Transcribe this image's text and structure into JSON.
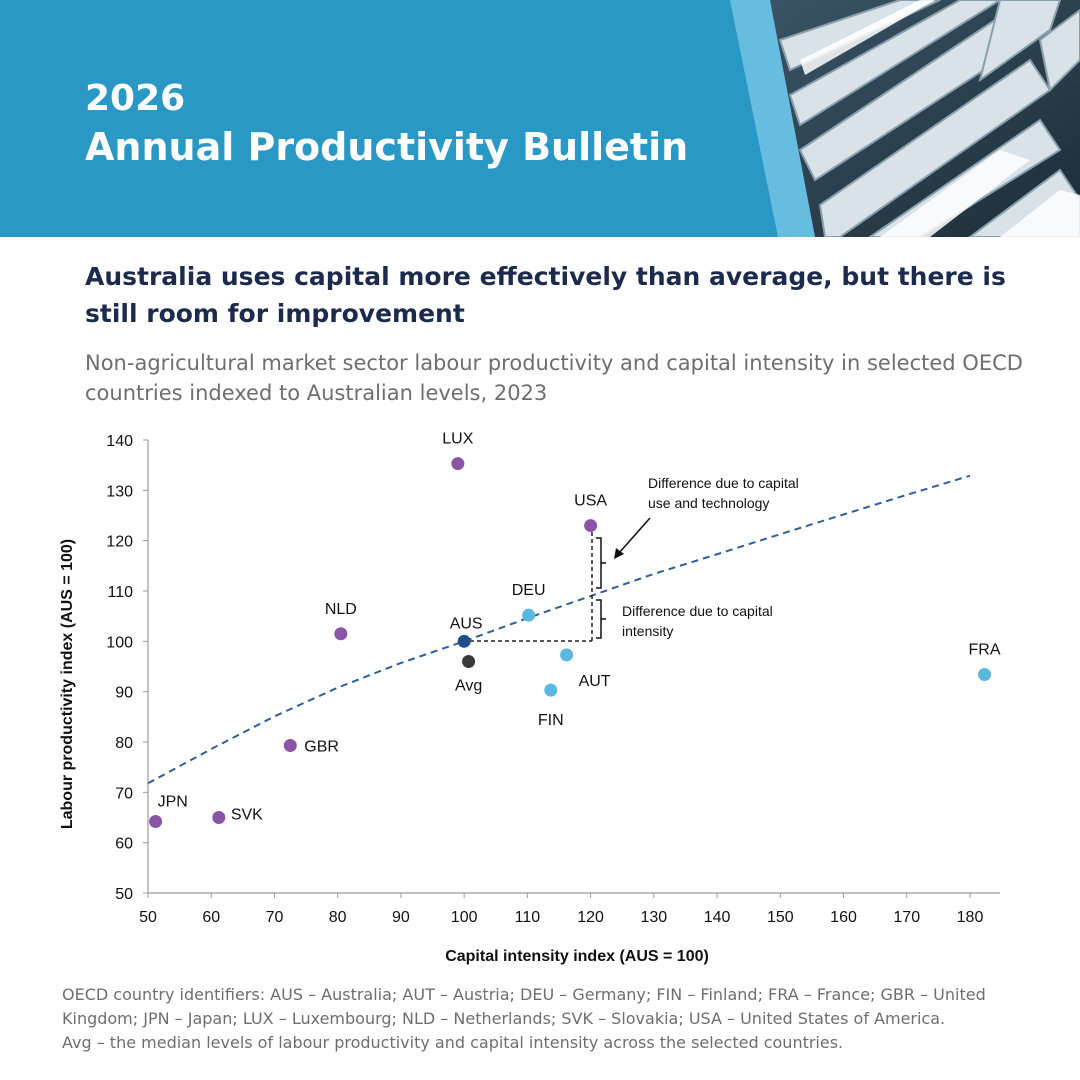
{
  "banner": {
    "year": "2026",
    "title": "Annual Productivity Bulletin",
    "bg_color": "#2a98c4",
    "accent_color": "#66bde0"
  },
  "headline": "Australia uses capital more effectively than average, but there is still room for improvement",
  "subheadline": "Non-agricultural market sector labour productivity and capital intensity in selected OECD countries indexed to Australian levels, 2023",
  "chart_data": {
    "type": "scatter",
    "xlabel": "Capital intensity index (AUS = 100)",
    "ylabel": "Labour productivity index (AUS = 100)",
    "xlim": [
      50,
      185
    ],
    "ylim": [
      50,
      140
    ],
    "xticks": [
      50,
      60,
      70,
      80,
      90,
      100,
      110,
      120,
      130,
      140,
      150,
      160,
      170,
      180
    ],
    "yticks": [
      50,
      60,
      70,
      80,
      90,
      100,
      110,
      120,
      130,
      140
    ],
    "grid": false,
    "colors": {
      "purple": "#8a55a6",
      "lightblue": "#5ab8e0",
      "darkblue": "#1f4e8c",
      "grey": "#3a3a3a",
      "trend": "#2f5f9a"
    },
    "points": [
      {
        "label": "LUX",
        "x": 99,
        "y": 135.3,
        "color": "purple"
      },
      {
        "label": "USA",
        "x": 120,
        "y": 123,
        "color": "purple"
      },
      {
        "label": "NLD",
        "x": 80.5,
        "y": 101.5,
        "color": "purple"
      },
      {
        "label": "GBR",
        "x": 72.5,
        "y": 79.3,
        "color": "purple"
      },
      {
        "label": "JPN",
        "x": 51.2,
        "y": 64.2,
        "color": "purple"
      },
      {
        "label": "SVK",
        "x": 61.2,
        "y": 65,
        "color": "purple"
      },
      {
        "label": "DEU",
        "x": 110.2,
        "y": 105.2,
        "color": "lightblue"
      },
      {
        "label": "AUT",
        "x": 116.2,
        "y": 97.3,
        "color": "lightblue"
      },
      {
        "label": "FIN",
        "x": 113.7,
        "y": 90.3,
        "color": "lightblue"
      },
      {
        "label": "FRA",
        "x": 182.3,
        "y": 93.4,
        "color": "lightblue"
      },
      {
        "label": "AUS",
        "x": 100,
        "y": 100,
        "color": "darkblue"
      },
      {
        "label": "Avg",
        "x": 100.7,
        "y": 96,
        "color": "grey"
      }
    ],
    "trendline": {
      "style": "dashed",
      "x": [
        50,
        60,
        70,
        80,
        90,
        100,
        110,
        120,
        130,
        140,
        150,
        160,
        170,
        180
      ],
      "y": [
        71.8,
        78.6,
        85.1,
        90.8,
        95.7,
        100,
        104.6,
        109,
        113.4,
        117.3,
        121.3,
        125.2,
        129.1,
        132.9
      ]
    },
    "annotations": [
      {
        "text_lines": [
          "Difference due to capital",
          "use and technology"
        ]
      },
      {
        "text_lines": [
          "Difference due to capital",
          "intensity"
        ]
      }
    ]
  },
  "footnote": [
    "OECD country identifiers: AUS – Australia; AUT – Austria; DEU – Germany; FIN – Finland; FRA – France; GBR – United Kingdom; JPN – Japan; LUX – Luxembourg; NLD – Netherlands; SVK – Slovakia; USA – United States of America.",
    "Avg – the median levels of labour productivity and capital intensity across the selected countries."
  ]
}
